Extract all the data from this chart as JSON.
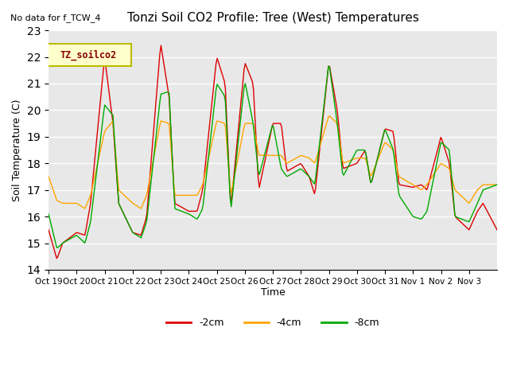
{
  "title": "Tonzi Soil CO2 Profile: Tree (West) Temperatures",
  "no_data_label": "No data for f_TCW_4",
  "legend_label": "TZ_soilco2",
  "ylabel": "Soil Temperature (C)",
  "xlabel": "Time",
  "ylim": [
    14.0,
    23.0
  ],
  "yticks": [
    14.0,
    15.0,
    16.0,
    17.0,
    18.0,
    19.0,
    20.0,
    21.0,
    22.0,
    23.0
  ],
  "xtick_labels": [
    "Oct 19",
    "Oct 20",
    "Oct 21",
    "Oct 22",
    "Oct 23",
    "Oct 24",
    "Oct 25",
    "Oct 26",
    "Oct 27",
    "Oct 28",
    "Oct 29",
    "Oct 30",
    "Oct 31",
    "Nov 1",
    "Nov 2",
    "Nov 3"
  ],
  "colors": {
    "neg2cm": "#DD0000",
    "neg4cm": "#FFA500",
    "neg8cm": "#00AA00",
    "background": "#E8E8E8",
    "legend_box_fill": "#FFFFCC",
    "legend_box_edge": "#BBBB00",
    "grid": "#FFFFFF"
  },
  "line_labels": [
    "-2cm",
    "-4cm",
    "-8cm"
  ]
}
